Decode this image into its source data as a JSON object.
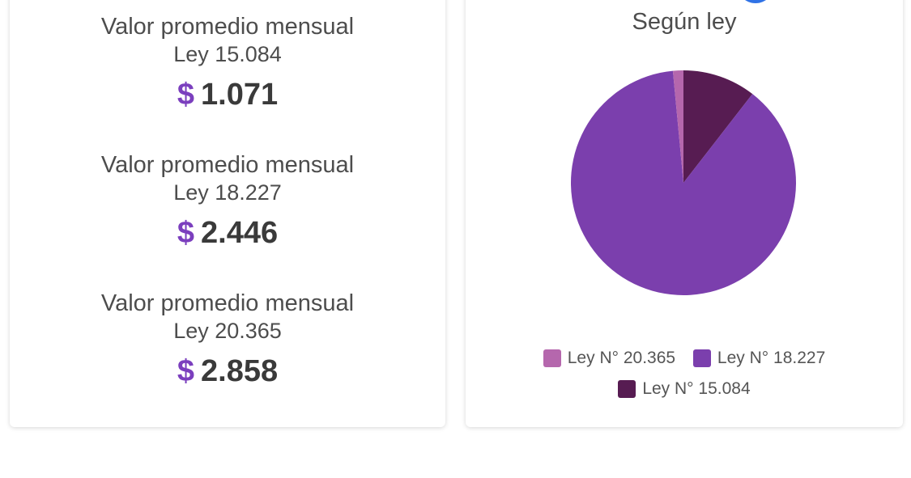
{
  "metrics": [
    {
      "title": "Valor promedio mensual",
      "law": "Ley 15.084",
      "currency": "$",
      "value": "1.071"
    },
    {
      "title": "Valor promedio mensual",
      "law": "Ley 18.227",
      "currency": "$",
      "value": "2.446"
    },
    {
      "title": "Valor promedio mensual",
      "law": "Ley 20.365",
      "currency": "$",
      "value": "2.858"
    }
  ],
  "chart_data": {
    "type": "pie",
    "title": "Según ley",
    "categories": [
      "Ley N° 15.084",
      "Ley N° 18.227",
      "Ley N° 20.365"
    ],
    "values": [
      10.5,
      88.0,
      1.5
    ],
    "colors": [
      "#571c52",
      "#7b3fad",
      "#b567ad"
    ],
    "legend": {
      "placement": "bottom",
      "items": [
        {
          "label": "Ley N° 20.365",
          "color": "#b567ad"
        },
        {
          "label": "Ley N° 18.227",
          "color": "#7b3fad"
        },
        {
          "label": "Ley N° 15.084",
          "color": "#571c52"
        }
      ]
    }
  }
}
